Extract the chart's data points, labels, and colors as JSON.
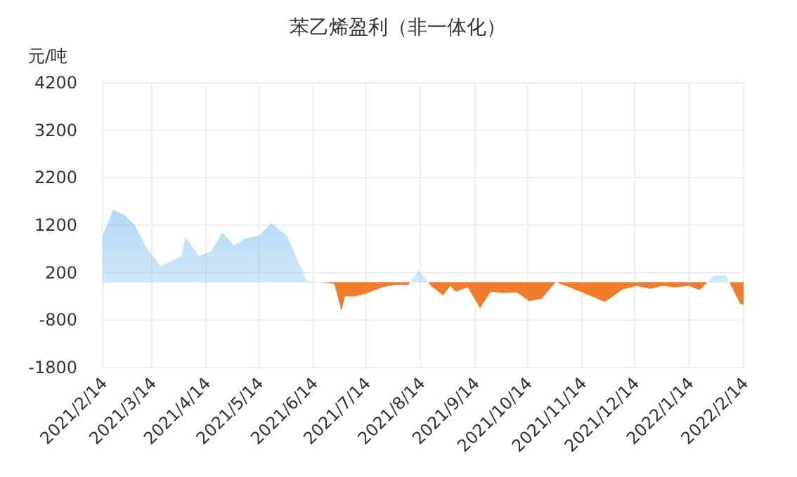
{
  "chart_data": {
    "type": "area",
    "title": "苯乙烯盈利（非一体化）",
    "ylabel": "元/吨",
    "x": [
      "2021-02-14",
      "2021-02-20",
      "2021-02-26",
      "2021-03-04",
      "2021-03-11",
      "2021-03-19",
      "2021-03-26",
      "2021-03-31",
      "2021-04-02",
      "2021-04-10",
      "2021-04-17",
      "2021-04-23",
      "2021-04-30",
      "2021-05-06",
      "2021-05-14",
      "2021-05-21",
      "2021-05-30",
      "2021-06-10",
      "2021-06-14",
      "2021-06-22",
      "2021-06-26",
      "2021-06-30",
      "2021-07-02",
      "2021-07-08",
      "2021-07-15",
      "2021-07-23",
      "2021-07-30",
      "2021-08-07",
      "2021-08-13",
      "2021-08-20",
      "2021-08-27",
      "2021-08-31",
      "2021-09-03",
      "2021-09-10",
      "2021-09-17",
      "2021-09-23",
      "2021-09-30",
      "2021-10-08",
      "2021-10-15",
      "2021-10-22",
      "2021-10-30",
      "2021-11-07",
      "2021-11-13",
      "2021-11-27",
      "2021-12-07",
      "2021-12-15",
      "2021-12-23",
      "2021-12-30",
      "2022-01-06",
      "2022-01-14",
      "2022-01-20",
      "2022-01-28",
      "2022-02-04",
      "2022-02-12",
      "2022-02-14"
    ],
    "series": [
      {
        "colors": [
          "#7cbcec",
          "#7cbcec",
          "#7cbcec",
          "#7cbcec",
          "#7cbcec",
          "#7cbcec",
          "#7cbcec",
          "#7cbcec",
          "#7cbcec",
          "#7cbcec",
          "#7cbcec",
          "#7cbcec",
          "#7cbcec",
          "#7cbcec",
          "#7cbcec",
          "#7cbcec",
          "#7cbcec",
          "#7cbcec",
          "#7cbcec",
          "#f07c2c",
          "#f07c2c",
          "#f07c2c",
          "#f07c2c",
          "#f07c2c",
          "#f07c2c",
          "#f07c2c",
          "#f07c2c",
          "#f07c2c",
          "#7cbcec",
          "#f07c2c",
          "#f07c2c",
          "#f07c2c",
          "#f07c2c",
          "#f07c2c",
          "#f07c2c",
          "#f07c2c",
          "#f07c2c",
          "#f07c2c",
          "#f07c2c",
          "#f07c2c",
          "#f07c2c",
          "#f07c2c",
          "#f07c2c",
          "#f07c2c",
          "#f07c2c",
          "#f07c2c",
          "#f07c2c",
          "#f07c2c",
          "#f07c2c",
          "#f07c2c",
          "#f07c2c",
          "#7cbcec",
          "#7cbcec",
          "#f07c2c",
          "#f07c2c"
        ],
        "values": [
          980,
          1520,
          1420,
          1220,
          730,
          340,
          460,
          540,
          950,
          550,
          650,
          1050,
          780,
          910,
          980,
          1240,
          980,
          40,
          10,
          -10,
          -40,
          -600,
          -300,
          -300,
          -230,
          -110,
          -60,
          -60,
          250,
          -80,
          -280,
          -80,
          -200,
          -110,
          -550,
          -200,
          -230,
          -220,
          -400,
          -350,
          0,
          -110,
          -200,
          -420,
          -160,
          -80,
          -140,
          -80,
          -110,
          -80,
          -170,
          140,
          140,
          -450,
          -480
        ]
      }
    ],
    "xlim": [
      "2021-02-14",
      "2022-02-14"
    ],
    "xticks": [
      {
        "value": "2021-02-14",
        "label": "2021/2/14"
      },
      {
        "value": "2021-03-14",
        "label": "2021/3/14"
      },
      {
        "value": "2021-04-14",
        "label": "2021/4/14"
      },
      {
        "value": "2021-05-14",
        "label": "2021/5/14"
      },
      {
        "value": "2021-06-14",
        "label": "2021/6/14"
      },
      {
        "value": "2021-07-14",
        "label": "2021/7/14"
      },
      {
        "value": "2021-08-14",
        "label": "2021/8/14"
      },
      {
        "value": "2021-09-14",
        "label": "2021/9/14"
      },
      {
        "value": "2021-10-14",
        "label": "2021/10/14"
      },
      {
        "value": "2021-11-14",
        "label": "2021/11/14"
      },
      {
        "value": "2021-12-14",
        "label": "2021/12/14"
      },
      {
        "value": "2022-01-14",
        "label": "2022/1/14"
      },
      {
        "value": "2022-02-14",
        "label": "2022/2/14"
      }
    ],
    "ylim": [
      -1800,
      4200
    ],
    "yticks": [
      -1800,
      -800,
      200,
      1200,
      2200,
      3200,
      4200
    ],
    "grid": true
  }
}
